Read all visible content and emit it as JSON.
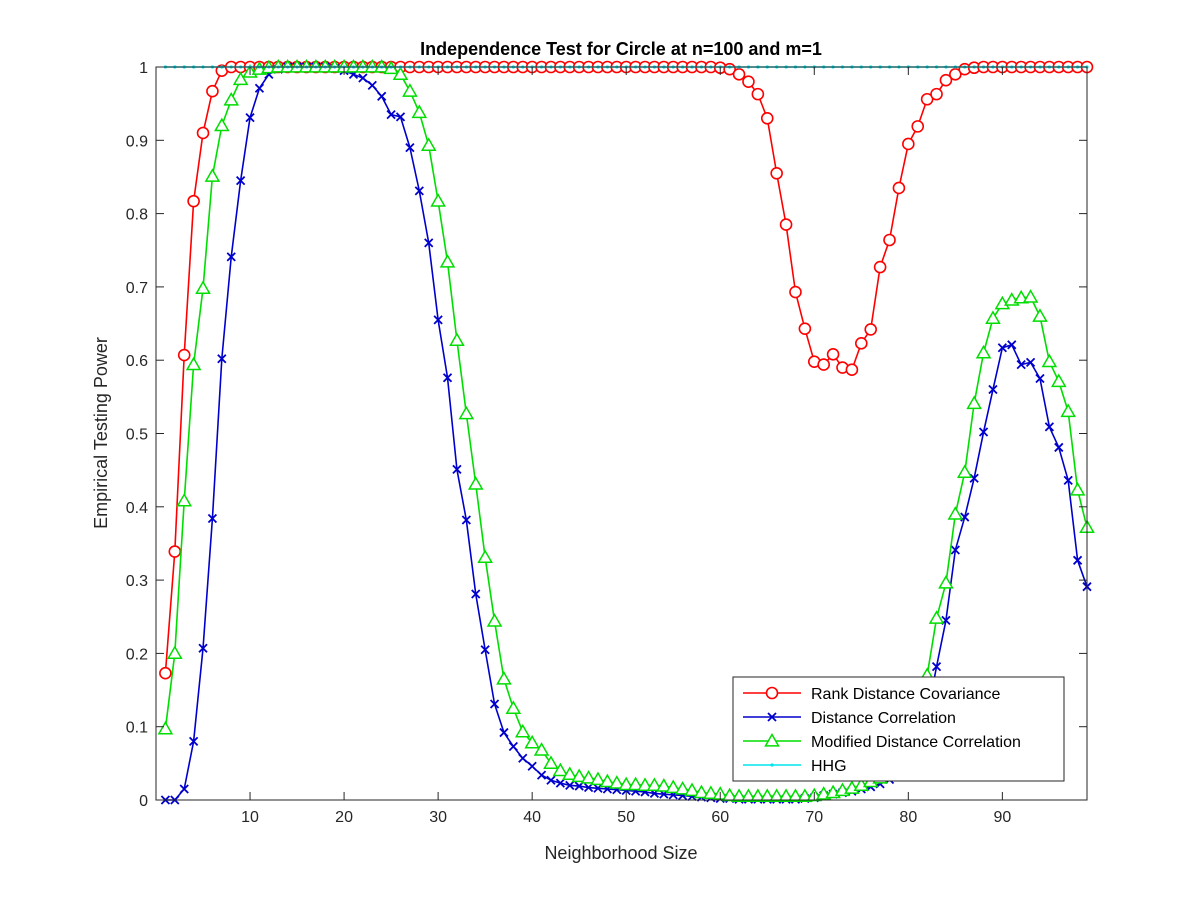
{
  "chart_data": {
    "type": "line",
    "title": "Independence Test for Circle at n=100 and m=1",
    "xlabel": "Neighborhood Size",
    "ylabel": "Empirical Testing Power",
    "xlim": [
      0,
      99
    ],
    "ylim": [
      0,
      1
    ],
    "xticks": [
      10,
      20,
      30,
      40,
      50,
      60,
      70,
      80,
      90
    ],
    "yticks": [
      0,
      0.1,
      0.2,
      0.3,
      0.4,
      0.5,
      0.6,
      0.7,
      0.8,
      0.9,
      1
    ],
    "ytick_labels": [
      "0",
      "0.1",
      "0.2",
      "0.3",
      "0.4",
      "0.5",
      "0.6",
      "0.7",
      "0.8",
      "0.9",
      "1"
    ],
    "grid": false,
    "legend_position": "bottom-right",
    "series": [
      {
        "name": "Rank Distance Covariance",
        "color": "#ff0000",
        "marker": "circle",
        "x": [
          1,
          2,
          3,
          4,
          5,
          6,
          7,
          8,
          9,
          10,
          11,
          12,
          13,
          14,
          15,
          16,
          17,
          18,
          19,
          20,
          21,
          22,
          23,
          24,
          25,
          26,
          27,
          28,
          29,
          30,
          31,
          32,
          33,
          34,
          35,
          36,
          37,
          38,
          39,
          40,
          41,
          42,
          43,
          44,
          45,
          46,
          47,
          48,
          49,
          50,
          51,
          52,
          53,
          54,
          55,
          56,
          57,
          58,
          59,
          60,
          61,
          62,
          63,
          64,
          65,
          66,
          67,
          68,
          69,
          70,
          71,
          72,
          73,
          74,
          75,
          76,
          77,
          78,
          79,
          80,
          81,
          82,
          83,
          84,
          85,
          86,
          87,
          88,
          89,
          90,
          91,
          92,
          93,
          94,
          95,
          96,
          97,
          98,
          99
        ],
        "values": [
          0.173,
          0.339,
          0.607,
          0.817,
          0.91,
          0.967,
          0.995,
          1,
          1,
          1,
          1,
          1,
          1,
          1,
          1,
          1,
          1,
          1,
          1,
          1,
          1,
          1,
          1,
          1,
          1,
          1,
          1,
          1,
          1,
          1,
          1,
          1,
          1,
          1,
          1,
          1,
          1,
          1,
          1,
          1,
          1,
          1,
          1,
          1,
          1,
          1,
          1,
          1,
          1,
          1,
          1,
          1,
          1,
          1,
          1,
          1,
          1,
          1,
          1,
          0.999,
          0.997,
          0.99,
          0.98,
          0.963,
          0.93,
          0.855,
          0.785,
          0.693,
          0.643,
          0.598,
          0.594,
          0.608,
          0.59,
          0.587,
          0.623,
          0.642,
          0.727,
          0.764,
          0.835,
          0.895,
          0.919,
          0.956,
          0.963,
          0.982,
          0.99,
          0.997,
          0.999,
          1,
          1,
          1,
          1,
          1,
          1,
          1,
          1,
          1,
          1,
          1,
          1
        ]
      },
      {
        "name": "Distance Correlation",
        "color": "#0000cc",
        "marker": "x",
        "x": [
          1,
          2,
          3,
          4,
          5,
          6,
          7,
          8,
          9,
          10,
          11,
          12,
          13,
          14,
          15,
          16,
          17,
          18,
          19,
          20,
          21,
          22,
          23,
          24,
          25,
          26,
          27,
          28,
          29,
          30,
          31,
          32,
          33,
          34,
          35,
          36,
          37,
          38,
          39,
          40,
          41,
          42,
          43,
          44,
          45,
          46,
          47,
          48,
          49,
          50,
          51,
          52,
          53,
          54,
          55,
          56,
          57,
          58,
          59,
          60,
          61,
          62,
          63,
          64,
          65,
          66,
          67,
          68,
          69,
          70,
          71,
          72,
          73,
          74,
          75,
          76,
          77,
          78,
          79,
          80,
          81,
          82,
          83,
          84,
          85,
          86,
          87,
          88,
          89,
          90,
          91,
          92,
          93,
          94,
          95,
          96,
          97,
          98,
          99
        ],
        "values": [
          0,
          0,
          0.015,
          0.08,
          0.207,
          0.384,
          0.602,
          0.741,
          0.845,
          0.931,
          0.971,
          0.99,
          0.997,
          1,
          1,
          1,
          1,
          1,
          0.998,
          0.995,
          0.99,
          0.985,
          0.975,
          0.96,
          0.935,
          0.932,
          0.89,
          0.831,
          0.76,
          0.655,
          0.576,
          0.451,
          0.382,
          0.281,
          0.205,
          0.131,
          0.092,
          0.073,
          0.057,
          0.046,
          0.034,
          0.027,
          0.023,
          0.02,
          0.019,
          0.017,
          0.016,
          0.015,
          0.014,
          0.013,
          0.012,
          0.011,
          0.009,
          0.008,
          0.007,
          0.006,
          0.005,
          0.004,
          0.003,
          0.002,
          0.002,
          0.001,
          0.001,
          0.001,
          0.001,
          0.001,
          0.001,
          0.001,
          0.002,
          0.003,
          0.006,
          0.008,
          0.01,
          0.012,
          0.015,
          0.018,
          0.022,
          0.028,
          0.036,
          0.05,
          0.075,
          0.115,
          0.182,
          0.245,
          0.341,
          0.386,
          0.439,
          0.502,
          0.56,
          0.617,
          0.621,
          0.594,
          0.597,
          0.575,
          0.509,
          0.481,
          0.436,
          0.327,
          0.291
        ]
      },
      {
        "name": "Modified Distance Correlation",
        "color": "#00dd00",
        "marker": "triangle",
        "x": [
          1,
          2,
          3,
          4,
          5,
          6,
          7,
          8,
          9,
          10,
          11,
          12,
          13,
          14,
          15,
          16,
          17,
          18,
          19,
          20,
          21,
          22,
          23,
          24,
          25,
          26,
          27,
          28,
          29,
          30,
          31,
          32,
          33,
          34,
          35,
          36,
          37,
          38,
          39,
          40,
          41,
          42,
          43,
          44,
          45,
          46,
          47,
          48,
          49,
          50,
          51,
          52,
          53,
          54,
          55,
          56,
          57,
          58,
          59,
          60,
          61,
          62,
          63,
          64,
          65,
          66,
          67,
          68,
          69,
          70,
          71,
          72,
          73,
          74,
          75,
          76,
          77,
          78,
          79,
          80,
          81,
          82,
          83,
          84,
          85,
          86,
          87,
          88,
          89,
          90,
          91,
          92,
          93,
          94,
          95,
          96,
          97,
          98,
          99
        ],
        "values": [
          0.097,
          0.2,
          0.408,
          0.594,
          0.698,
          0.851,
          0.92,
          0.955,
          0.983,
          0.993,
          0.997,
          0.999,
          1,
          1,
          1,
          1,
          1,
          1,
          1,
          1,
          1,
          1,
          1,
          1,
          0.998,
          0.99,
          0.967,
          0.938,
          0.893,
          0.817,
          0.734,
          0.627,
          0.527,
          0.431,
          0.331,
          0.244,
          0.165,
          0.125,
          0.093,
          0.078,
          0.068,
          0.05,
          0.04,
          0.035,
          0.032,
          0.03,
          0.028,
          0.025,
          0.023,
          0.021,
          0.021,
          0.02,
          0.02,
          0.019,
          0.017,
          0.015,
          0.013,
          0.01,
          0.009,
          0.008,
          0.006,
          0.005,
          0.005,
          0.005,
          0.005,
          0.005,
          0.005,
          0.005,
          0.005,
          0.006,
          0.008,
          0.01,
          0.013,
          0.016,
          0.02,
          0.025,
          0.03,
          0.038,
          0.05,
          0.07,
          0.1,
          0.17,
          0.248,
          0.296,
          0.39,
          0.447,
          0.541,
          0.61,
          0.657,
          0.677,
          0.682,
          0.685,
          0.686,
          0.66,
          0.598,
          0.571,
          0.53,
          0.423,
          0.372
        ]
      },
      {
        "name": "HHG",
        "color": "#00e5ee",
        "marker": "point",
        "x": [
          1,
          2,
          3,
          4,
          5,
          6,
          7,
          8,
          9,
          10,
          11,
          12,
          13,
          14,
          15,
          16,
          17,
          18,
          19,
          20,
          21,
          22,
          23,
          24,
          25,
          26,
          27,
          28,
          29,
          30,
          31,
          32,
          33,
          34,
          35,
          36,
          37,
          38,
          39,
          40,
          41,
          42,
          43,
          44,
          45,
          46,
          47,
          48,
          49,
          50,
          51,
          52,
          53,
          54,
          55,
          56,
          57,
          58,
          59,
          60,
          61,
          62,
          63,
          64,
          65,
          66,
          67,
          68,
          69,
          70,
          71,
          72,
          73,
          74,
          75,
          76,
          77,
          78,
          79,
          80,
          81,
          82,
          83,
          84,
          85,
          86,
          87,
          88,
          89,
          90,
          91,
          92,
          93,
          94,
          95,
          96,
          97,
          98,
          99
        ],
        "values": [
          1,
          1,
          1,
          1,
          1,
          1,
          1,
          1,
          1,
          1,
          1,
          1,
          1,
          1,
          1,
          1,
          1,
          1,
          1,
          1,
          1,
          1,
          1,
          1,
          1,
          1,
          1,
          1,
          1,
          1,
          1,
          1,
          1,
          1,
          1,
          1,
          1,
          1,
          1,
          1,
          1,
          1,
          1,
          1,
          1,
          1,
          1,
          1,
          1,
          1,
          1,
          1,
          1,
          1,
          1,
          1,
          1,
          1,
          1,
          1,
          1,
          1,
          1,
          1,
          1,
          1,
          1,
          1,
          1,
          1,
          1,
          1,
          1,
          1,
          1,
          1,
          1,
          1,
          1,
          1,
          1,
          1,
          1,
          1,
          1,
          1,
          1,
          1,
          1,
          1,
          1,
          1,
          1,
          1,
          1,
          1,
          1,
          1,
          1
        ]
      }
    ]
  }
}
